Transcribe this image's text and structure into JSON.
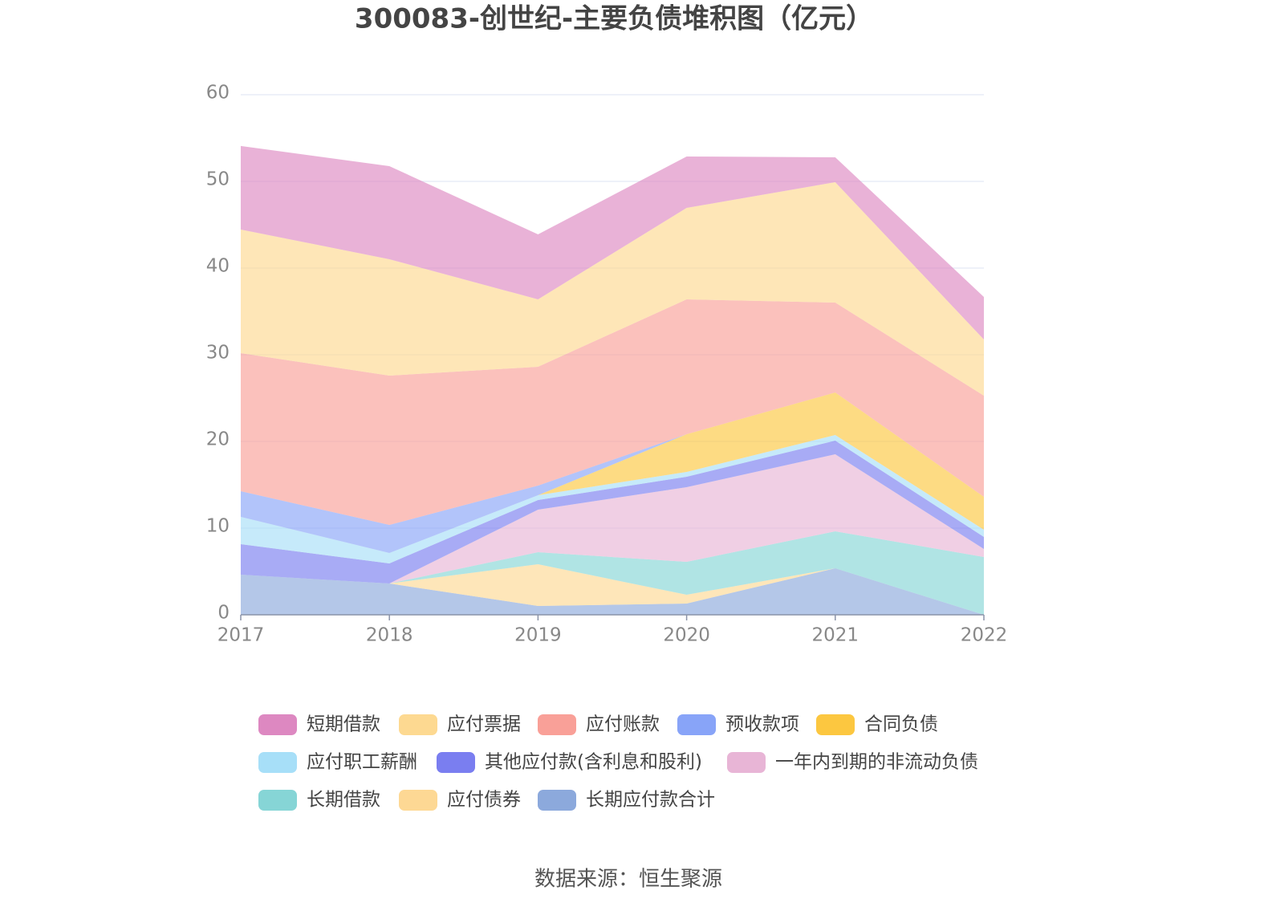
{
  "chart_data": {
    "type": "stacked_area",
    "title": "300083-创世纪-主要负债堆积图（亿元）",
    "source": "数据来源：恒生聚源",
    "categories": [
      "2017",
      "2018",
      "2019",
      "2020",
      "2021",
      "2022"
    ],
    "ylim": [
      0,
      60
    ],
    "yticks": [
      0,
      10,
      20,
      30,
      40,
      50,
      60
    ],
    "grid": true,
    "legend": "bottom",
    "series": [
      {
        "name": "长期应付款合计",
        "color": "#8ca9dc",
        "values": [
          4.63,
          3.61,
          1.02,
          1.3,
          5.37,
          0
        ]
      },
      {
        "name": "应付债券",
        "color": "#fdd894",
        "values": [
          0,
          0,
          4.81,
          1.01,
          0,
          0
        ]
      },
      {
        "name": "长期借款",
        "color": "#86d5d6",
        "values": [
          0,
          0,
          1.39,
          3.8,
          4.26,
          6.67
        ]
      },
      {
        "name": "一年内到期的非流动负债",
        "color": "#e8b5d6",
        "values": [
          0,
          0,
          4.91,
          8.61,
          8.89,
          0.92
        ]
      },
      {
        "name": "其他应付款(含利息和股利)",
        "color": "#7a7ef0",
        "values": [
          3.52,
          2.32,
          1.11,
          1.21,
          1.57,
          1.39
        ]
      },
      {
        "name": "应付职工薪酬",
        "color": "#a7dff8",
        "values": [
          3.15,
          1.2,
          0.56,
          0.55,
          0.65,
          0.83
        ]
      },
      {
        "name": "合同负债",
        "color": "#fcc740",
        "values": [
          0,
          0,
          0,
          4.35,
          4.91,
          3.8
        ]
      },
      {
        "name": "预收款项",
        "color": "#88a4f8",
        "values": [
          2.96,
          3.24,
          1.11,
          0,
          0,
          0
        ]
      },
      {
        "name": "应付账款",
        "color": "#f9a098",
        "values": [
          15.93,
          17.22,
          13.7,
          15.56,
          10.37,
          11.67
        ]
      },
      {
        "name": "应付票据",
        "color": "#fdd991",
        "values": [
          14.26,
          13.43,
          7.78,
          10.55,
          13.89,
          6.48
        ]
      },
      {
        "name": "短期借款",
        "color": "#dd88c1",
        "values": [
          9.63,
          10.74,
          7.5,
          5.93,
          2.87,
          4.91
        ]
      }
    ]
  }
}
